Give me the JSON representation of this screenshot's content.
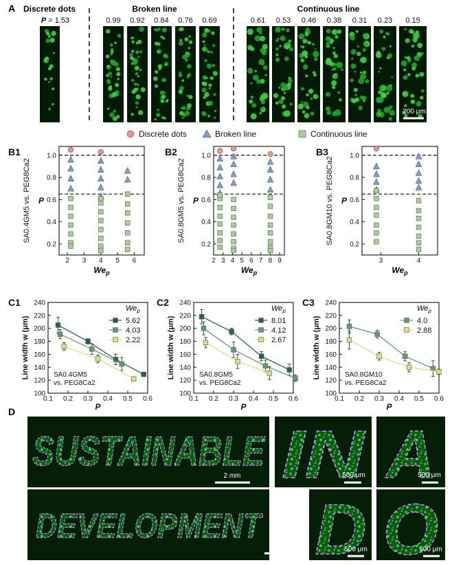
{
  "panelA": {
    "label": "A",
    "groups": [
      {
        "name": "Discrete dots",
        "values": [
          "1.53"
        ]
      },
      {
        "name": "Broken line",
        "values": [
          "0.99",
          "0.92",
          "0.84",
          "0.76",
          "0.69"
        ]
      },
      {
        "name": "Continuous line",
        "values": [
          "0.61",
          "0.53",
          "0.46",
          "0.38",
          "0.31",
          "0.23",
          "0.15"
        ]
      }
    ],
    "p_prefix": "P = ",
    "scale_bar": "200 μm"
  },
  "legend_top": [
    {
      "name": "Discrete dots",
      "color": "#e8968a",
      "marker": "circle"
    },
    {
      "name": "Broken line",
      "color": "#7b9de0",
      "marker": "triangle"
    },
    {
      "name": "Continuous line",
      "color": "#a8cf96",
      "marker": "square"
    }
  ],
  "chart_data": [
    {
      "type": "scatter",
      "label": "B1",
      "ylabel": "P",
      "xlabel": "We",
      "xlabel_sub": "p",
      "side_label": "SA0.4GM5 vs. PEG8Ca2",
      "xlim": [
        1.5,
        6.6
      ],
      "ylim": [
        0.1,
        1.08
      ],
      "xticks": [
        2,
        3,
        4,
        5,
        6
      ],
      "yticks": [
        0.2,
        0.4,
        0.6,
        0.8,
        1.0
      ],
      "hlines": [
        1.0,
        0.65
      ],
      "series": [
        {
          "x": [
            2.2,
            4.0
          ],
          "y": [
            1.05,
            1.03
          ],
          "kind": "circle"
        },
        {
          "x": [
            2.2,
            2.2,
            2.2,
            2.2,
            4.0,
            4.0,
            4.0,
            4.0,
            4.0,
            5.6,
            5.6
          ],
          "y": [
            0.96,
            0.88,
            0.79,
            0.7,
            0.95,
            0.87,
            0.79,
            0.71,
            0.63,
            0.86,
            0.78
          ],
          "kind": "triangle"
        },
        {
          "x": [
            2.2,
            2.2,
            2.2,
            2.2,
            2.2,
            2.2,
            2.2,
            4.0,
            4.0,
            4.0,
            4.0,
            4.0,
            4.0,
            4.0,
            4.0,
            5.6,
            5.6,
            5.6,
            5.6,
            5.6,
            5.6,
            5.6
          ],
          "y": [
            0.61,
            0.53,
            0.45,
            0.37,
            0.29,
            0.21,
            0.18,
            0.57,
            0.49,
            0.41,
            0.33,
            0.25,
            0.18,
            0.14,
            0.61,
            0.65,
            0.56,
            0.48,
            0.39,
            0.3,
            0.21,
            0.15
          ],
          "kind": "square"
        }
      ]
    },
    {
      "type": "scatter",
      "label": "B2",
      "ylabel": "P",
      "xlabel": "We",
      "xlabel_sub": "p",
      "side_label": "SA0.8GM5 vs. PEG8Ca2",
      "xlim": [
        2.0,
        9.5
      ],
      "ylim": [
        0.1,
        1.08
      ],
      "xticks": [
        2,
        3,
        4,
        5,
        6,
        7,
        8,
        9
      ],
      "yticks": [
        0.2,
        0.4,
        0.6,
        0.8,
        1.0
      ],
      "hlines": [
        1.0,
        0.65
      ],
      "series": [
        {
          "x": [
            2.67,
            4.12,
            8.01
          ],
          "y": [
            1.04,
            1.06,
            1.01
          ],
          "kind": "circle"
        },
        {
          "x": [
            2.67,
            2.67,
            2.67,
            2.67,
            2.67,
            4.12,
            4.12,
            4.12,
            4.12,
            8.01,
            8.01,
            8.01,
            8.01
          ],
          "y": [
            0.97,
            0.89,
            0.81,
            0.73,
            0.66,
            0.99,
            0.92,
            0.83,
            0.75,
            0.94,
            0.87,
            0.78,
            0.69
          ],
          "kind": "triangle"
        },
        {
          "x": [
            2.67,
            2.67,
            2.67,
            2.67,
            2.67,
            2.67,
            2.67,
            2.67,
            4.12,
            4.12,
            4.12,
            4.12,
            4.12,
            4.12,
            4.12,
            4.12,
            8.01,
            8.01,
            8.01,
            8.01,
            8.01,
            8.01,
            8.01,
            8.01
          ],
          "y": [
            0.61,
            0.53,
            0.45,
            0.38,
            0.3,
            0.23,
            0.17,
            0.64,
            0.6,
            0.52,
            0.44,
            0.37,
            0.29,
            0.22,
            0.16,
            0.14,
            0.62,
            0.54,
            0.45,
            0.37,
            0.3,
            0.22,
            0.17,
            0.14
          ],
          "kind": "square"
        }
      ]
    },
    {
      "type": "scatter",
      "label": "B3",
      "ylabel": "P",
      "xlabel": "We",
      "xlabel_sub": "p",
      "side_label": "SA0.8GM10 vs. PEG8Ca2",
      "xlim": [
        2.5,
        4.5
      ],
      "ylim": [
        0.1,
        1.08
      ],
      "xticks": [
        3,
        4
      ],
      "yticks": [
        0.2,
        0.4,
        0.6,
        0.8,
        1.0
      ],
      "hlines": [
        1.0,
        0.65
      ],
      "series": [
        {
          "x": [
            2.88
          ],
          "y": [
            1.06
          ],
          "kind": "circle"
        },
        {
          "x": [
            2.88,
            2.88,
            2.88,
            2.88,
            4.0,
            4.0,
            4.0,
            4.0,
            4.0
          ],
          "y": [
            0.9,
            0.83,
            0.76,
            0.69,
            0.99,
            0.92,
            0.84,
            0.77,
            0.71
          ],
          "kind": "triangle"
        },
        {
          "x": [
            2.88,
            2.88,
            2.88,
            2.88,
            2.88,
            2.88,
            2.88,
            4.0,
            4.0,
            4.0,
            4.0,
            4.0,
            4.0,
            4.0
          ],
          "y": [
            0.68,
            0.61,
            0.53,
            0.46,
            0.37,
            0.3,
            0.22,
            0.59,
            0.5,
            0.43,
            0.35,
            0.27,
            0.21,
            0.15
          ],
          "kind": "square"
        }
      ]
    },
    {
      "type": "line",
      "label": "C1",
      "ylabel": "Line width w (μm)",
      "xlabel": "P",
      "xlim": [
        0.1,
        0.6
      ],
      "ylim": [
        100,
        240
      ],
      "xticks": [
        0.1,
        0.2,
        0.3,
        0.4,
        0.5,
        0.6
      ],
      "yticks": [
        100,
        120,
        140,
        160,
        180,
        200,
        220,
        240
      ],
      "legend_title": "We",
      "legend_title_sub": "p",
      "note": [
        "SA0.4GM5",
        "vs. PEG8Ca2"
      ],
      "series": [
        {
          "name": "5.62",
          "color": "#24634e",
          "x": [
            0.15,
            0.3,
            0.44,
            0.58
          ],
          "y": [
            205,
            180,
            152,
            129
          ],
          "err": [
            12,
            4,
            8,
            3
          ]
        },
        {
          "name": "4.03",
          "color": "#5f9e6f",
          "x": [
            0.16,
            0.32,
            0.47
          ],
          "y": [
            191,
            168,
            145
          ],
          "err": [
            7,
            8,
            10
          ]
        },
        {
          "name": "2.22",
          "color": "#d4e47f",
          "x": [
            0.18,
            0.35,
            0.53
          ],
          "y": [
            172,
            153,
            122
          ],
          "err": [
            6,
            6,
            3
          ]
        }
      ]
    },
    {
      "type": "line",
      "label": "C2",
      "ylabel": "Line width w (μm)",
      "xlabel": "P",
      "xlim": [
        0.1,
        0.6
      ],
      "ylim": [
        100,
        240
      ],
      "xticks": [
        0.1,
        0.2,
        0.3,
        0.4,
        0.5,
        0.6
      ],
      "yticks": [
        100,
        120,
        140,
        160,
        180,
        200,
        220,
        240
      ],
      "legend_title": "We",
      "legend_title_sub": "p",
      "note": [
        "SA0.8GM5",
        "vs. PEG8Ca2"
      ],
      "series": [
        {
          "name": "8.01",
          "color": "#24634e",
          "x": [
            0.14,
            0.29,
            0.44,
            0.58
          ],
          "y": [
            218,
            195,
            157,
            136
          ],
          "err": [
            11,
            5,
            7,
            9
          ]
        },
        {
          "name": "4.12",
          "color": "#5f9e6f",
          "x": [
            0.15,
            0.3,
            0.46,
            0.61
          ],
          "y": [
            200,
            167,
            142,
            123
          ],
          "err": [
            10,
            12,
            9,
            5
          ]
        },
        {
          "name": "2.67",
          "color": "#d4e47f",
          "x": [
            0.16,
            0.32,
            0.48
          ],
          "y": [
            178,
            149,
            131
          ],
          "err": [
            8,
            11,
            10
          ]
        }
      ]
    },
    {
      "type": "line",
      "label": "C3",
      "ylabel": "Line width w (μm)",
      "xlabel": "P",
      "xlim": [
        0.1,
        0.6
      ],
      "ylim": [
        100,
        240
      ],
      "xticks": [
        0.1,
        0.2,
        0.3,
        0.4,
        0.5,
        0.6
      ],
      "yticks": [
        100,
        120,
        140,
        160,
        180,
        200,
        220,
        240
      ],
      "legend_title": "We",
      "legend_title_sub": "p",
      "note": [
        "SA0.8GM10",
        "vs. PEG8Ca2"
      ],
      "series": [
        {
          "name": "4.0",
          "color": "#5f9e6f",
          "x": [
            0.15,
            0.29,
            0.43,
            0.57
          ],
          "y": [
            203,
            191,
            157,
            138
          ],
          "err": [
            10,
            6,
            7,
            12
          ]
        },
        {
          "name": "2.88",
          "color": "#d4e47f",
          "x": [
            0.15,
            0.3,
            0.45,
            0.6
          ],
          "y": [
            182,
            157,
            140,
            133
          ],
          "err": [
            14,
            6,
            7,
            4
          ]
        }
      ]
    }
  ],
  "panelD": {
    "label": "D",
    "words": [
      "SUSTAINABLE",
      "DEVELOPMENT"
    ],
    "letters": [
      "IN",
      "A",
      "D",
      "O"
    ],
    "scale_2mm": "2 mm",
    "scale_500": "500 μm"
  }
}
